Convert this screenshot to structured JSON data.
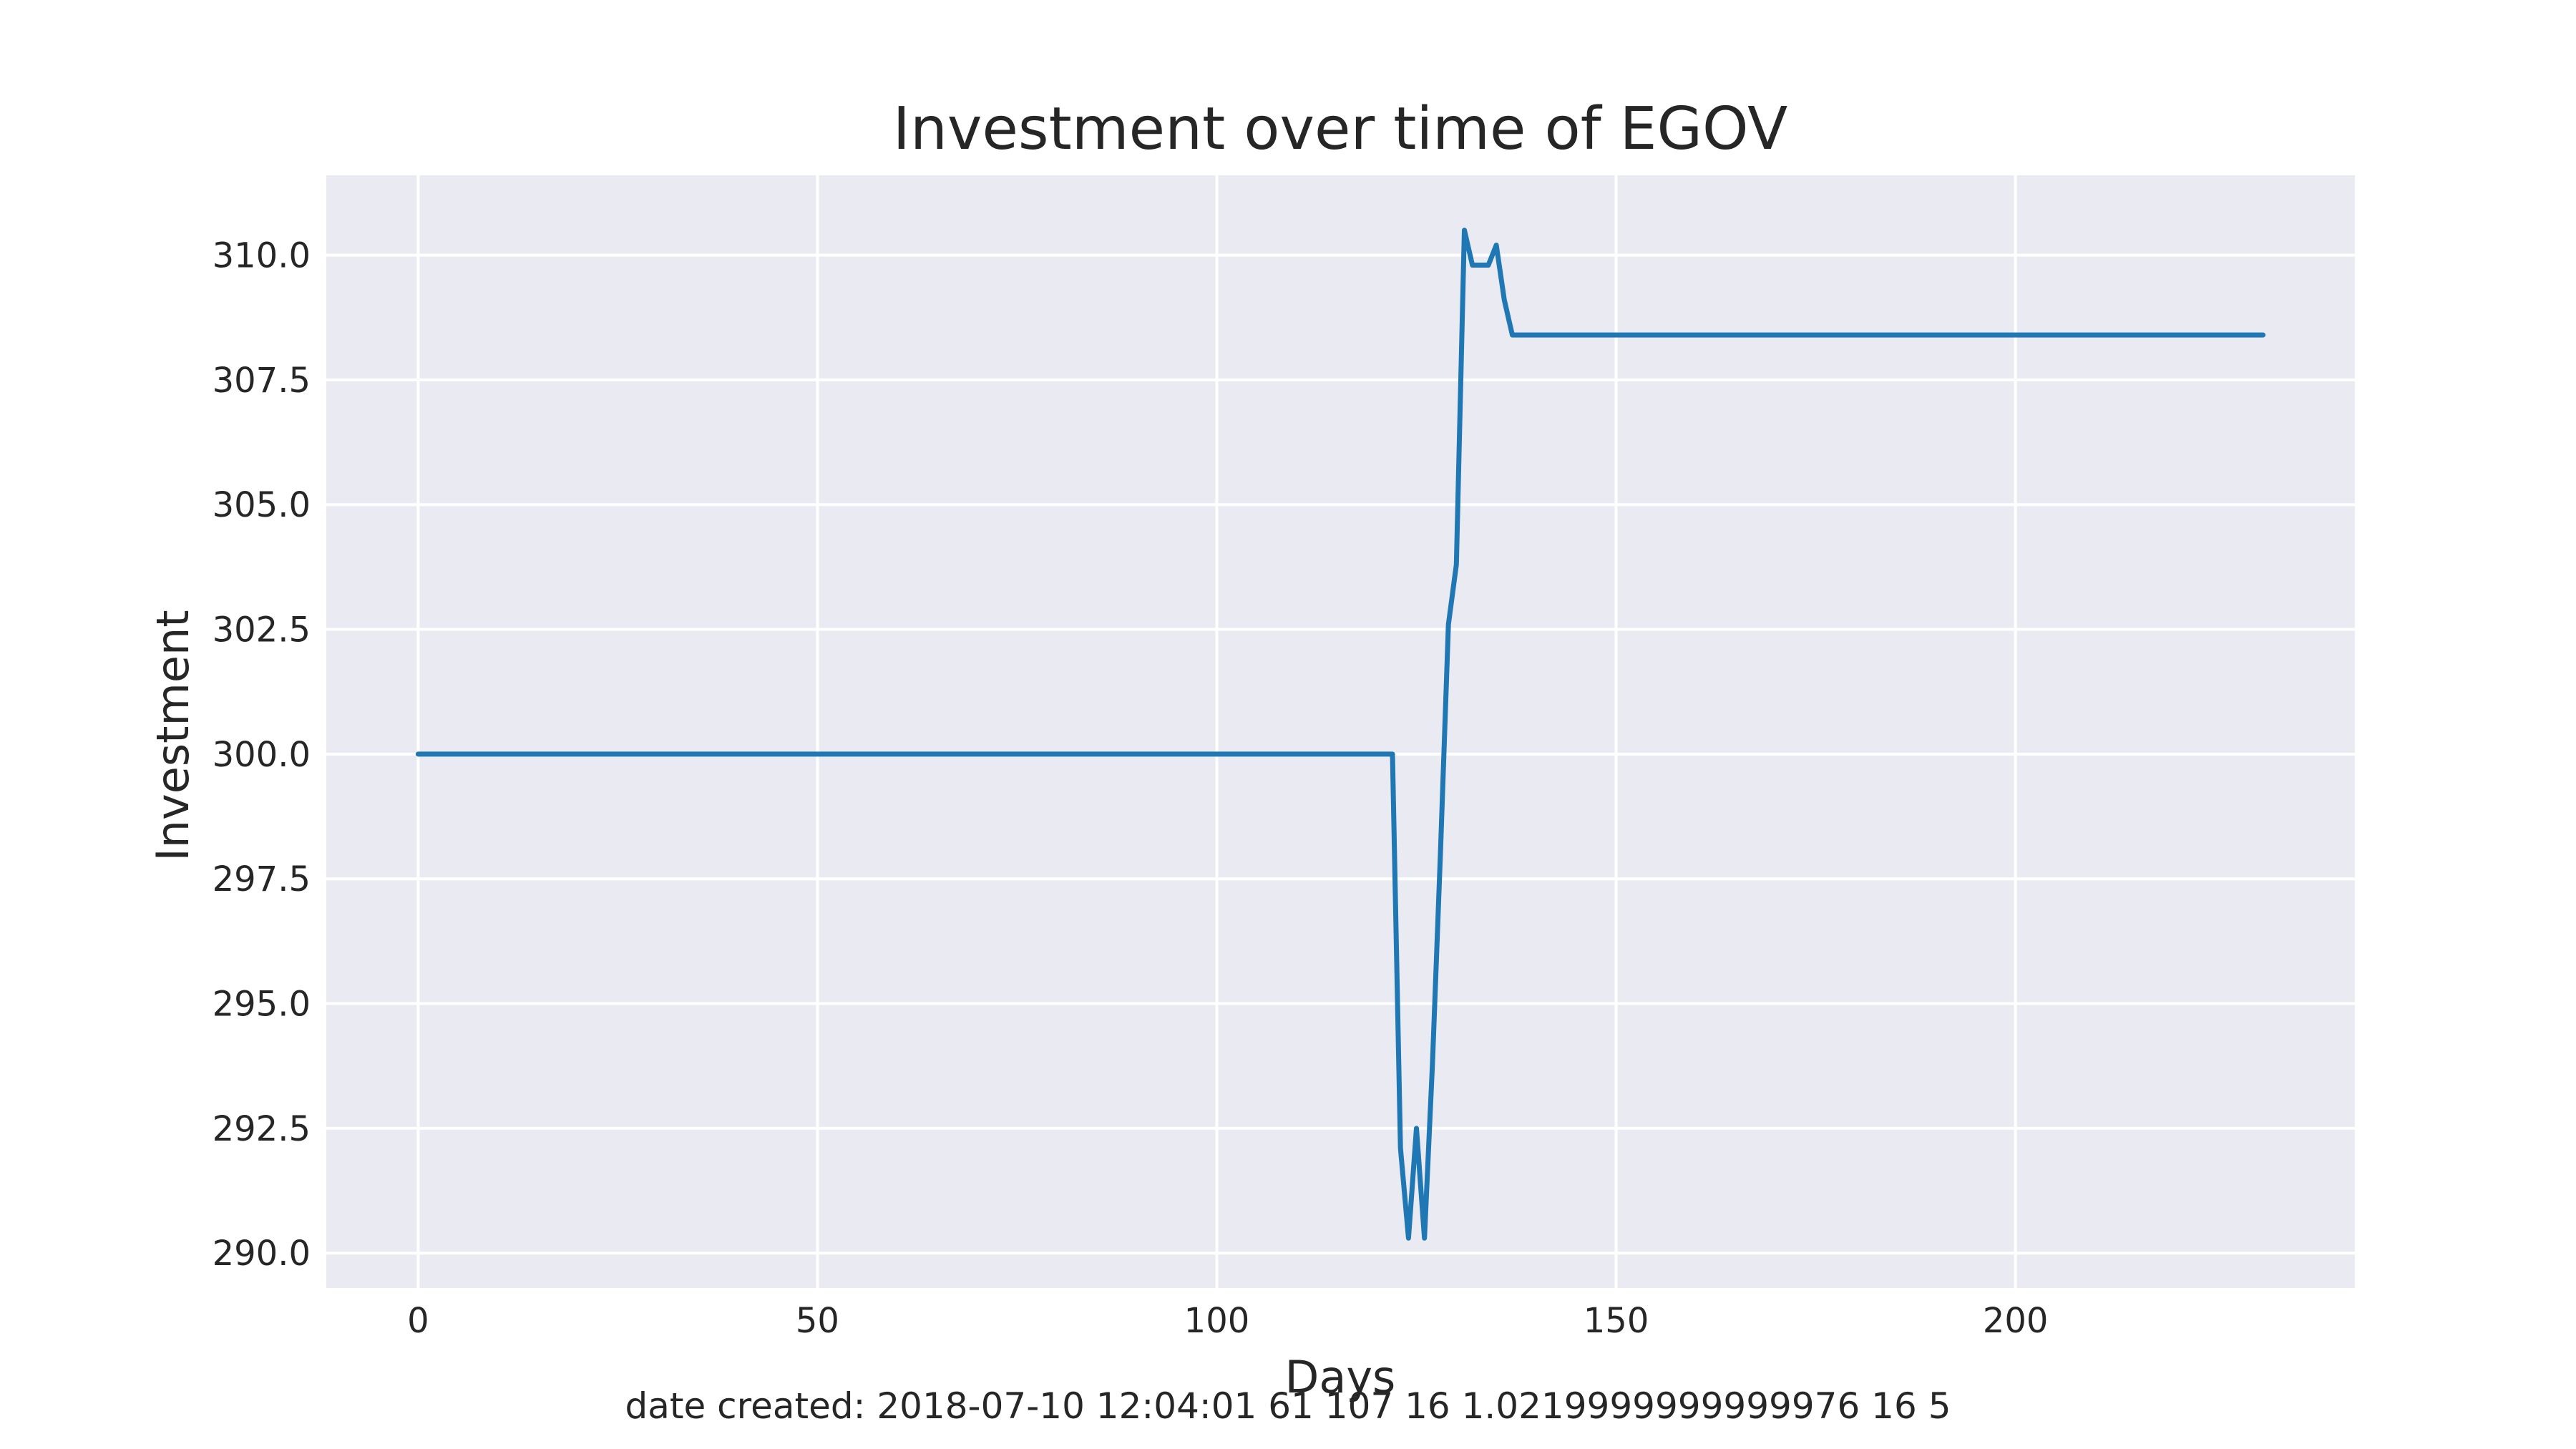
{
  "chart_data": {
    "type": "line",
    "title": "Investment over time of EGOV",
    "xlabel": "Days",
    "ylabel": "Investment",
    "xlim": [
      -11.5,
      242.5
    ],
    "ylim": [
      289.3,
      311.6
    ],
    "xticks": [
      0,
      50,
      100,
      150,
      200
    ],
    "xtick_labels": [
      "0",
      "50",
      "100",
      "150",
      "200"
    ],
    "yticks": [
      290.0,
      292.5,
      295.0,
      297.5,
      300.0,
      302.5,
      305.0,
      307.5,
      310.0
    ],
    "ytick_labels": [
      "290.0",
      "292.5",
      "295.0",
      "297.5",
      "300.0",
      "302.5",
      "305.0",
      "307.5",
      "310.0"
    ],
    "grid": true,
    "series": [
      {
        "color": "#1f77b4",
        "x": [
          0,
          122,
          123,
          124,
          125,
          126,
          127,
          128,
          129,
          130,
          131,
          132,
          133,
          134,
          135,
          136,
          137,
          231
        ],
        "y": [
          300.0,
          300.0,
          292.1,
          290.3,
          292.5,
          290.3,
          293.8,
          298.0,
          302.6,
          303.8,
          310.5,
          309.8,
          309.8,
          309.8,
          310.2,
          309.1,
          308.4,
          308.4
        ]
      }
    ]
  },
  "footer": {
    "text": "date created: 2018-07-10 12:04:01 61 107 16 1.0219999999999976 16 5"
  }
}
